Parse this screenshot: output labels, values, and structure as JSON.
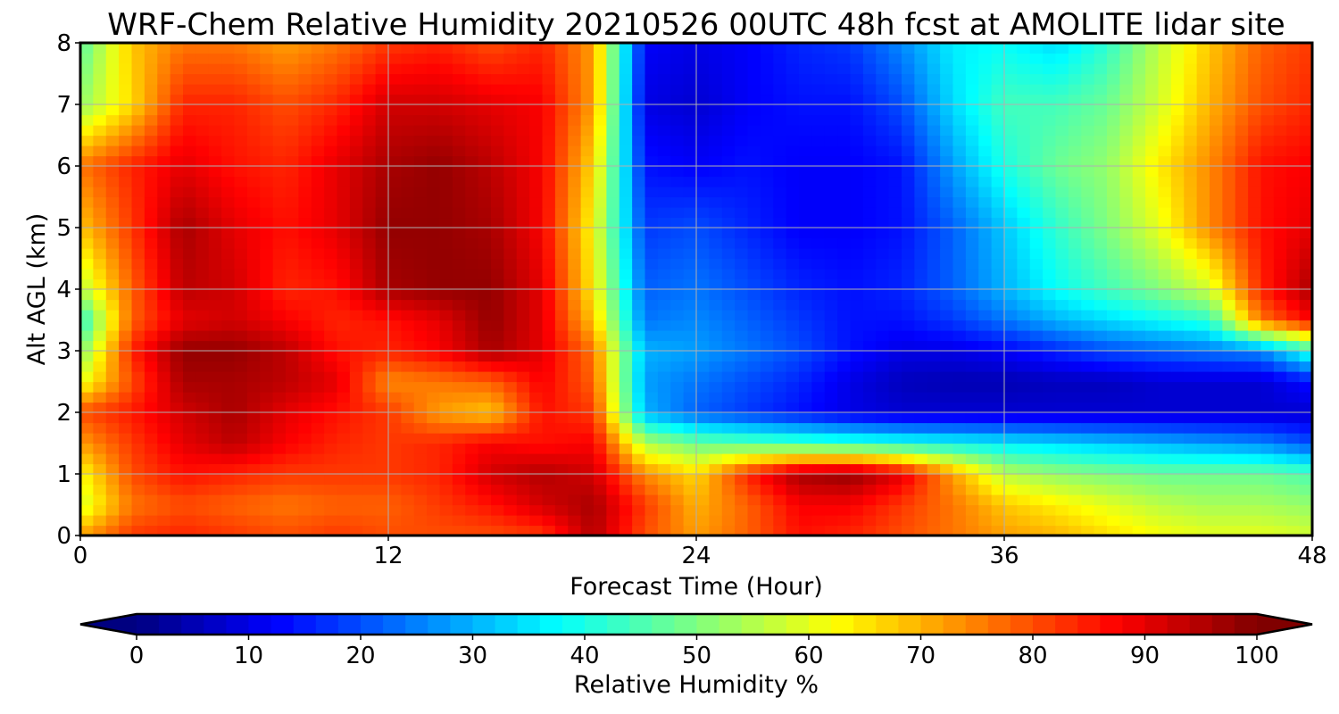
{
  "chart_data": {
    "type": "heatmap",
    "title": "WRF-Chem Relative Humidity 20210526 00UTC 48h fcst at AMOLITE lidar site",
    "xlabel": "Forecast Time (Hour)",
    "ylabel": "Alt AGL (km)",
    "xlim": [
      0,
      48
    ],
    "ylim": [
      0,
      8
    ],
    "x_ticks": [
      "0",
      "12",
      "24",
      "36",
      "48"
    ],
    "y_ticks": [
      "0",
      "1",
      "2",
      "3",
      "4",
      "5",
      "6",
      "7",
      "8"
    ],
    "grid": true,
    "colormap": "jet",
    "colorbar": {
      "label": "Relative Humidity %",
      "range": [
        0,
        100
      ],
      "extend": "both",
      "orientation": "horizontal",
      "ticks": [
        "0",
        "10",
        "20",
        "30",
        "40",
        "50",
        "60",
        "70",
        "80",
        "90",
        "100"
      ]
    },
    "x": [
      0,
      2,
      4,
      6,
      8,
      10,
      12,
      14,
      16,
      18,
      20,
      22,
      24,
      26,
      28,
      30,
      32,
      34,
      36,
      38,
      40,
      42,
      44,
      46,
      48
    ],
    "y": [
      0,
      0.5,
      1,
      1.5,
      2,
      2.5,
      3,
      3.5,
      4,
      5,
      6,
      7,
      8
    ],
    "z": [
      [
        72,
        82,
        84,
        82,
        80,
        82,
        80,
        80,
        80,
        82,
        95,
        80,
        72,
        78,
        86,
        84,
        80,
        76,
        72,
        70,
        66,
        62,
        60,
        60,
        58
      ],
      [
        58,
        76,
        80,
        78,
        76,
        78,
        78,
        82,
        86,
        92,
        96,
        82,
        70,
        78,
        88,
        88,
        82,
        76,
        68,
        64,
        60,
        56,
        54,
        54,
        52
      ],
      [
        62,
        80,
        86,
        84,
        82,
        82,
        82,
        84,
        92,
        95,
        92,
        74,
        66,
        84,
        96,
        98,
        90,
        72,
        56,
        52,
        50,
        48,
        48,
        48,
        45
      ],
      [
        72,
        82,
        90,
        94,
        88,
        84,
        82,
        84,
        88,
        86,
        88,
        55,
        48,
        46,
        44,
        42,
        40,
        38,
        36,
        34,
        32,
        30,
        28,
        26,
        20
      ],
      [
        80,
        85,
        92,
        96,
        90,
        86,
        82,
        72,
        68,
        86,
        82,
        30,
        22,
        18,
        14,
        10,
        8,
        8,
        8,
        8,
        8,
        8,
        8,
        8,
        8
      ],
      [
        60,
        80,
        96,
        96,
        94,
        90,
        74,
        76,
        78,
        88,
        78,
        28,
        24,
        20,
        16,
        10,
        6,
        5,
        5,
        6,
        6,
        8,
        8,
        8,
        14
      ],
      [
        50,
        84,
        98,
        98,
        94,
        86,
        84,
        88,
        96,
        90,
        76,
        30,
        28,
        24,
        20,
        14,
        10,
        10,
        12,
        16,
        20,
        22,
        24,
        26,
        42
      ],
      [
        40,
        78,
        90,
        92,
        88,
        84,
        86,
        90,
        98,
        90,
        68,
        24,
        26,
        22,
        18,
        14,
        14,
        18,
        24,
        30,
        34,
        38,
        42,
        76,
        88
      ],
      [
        55,
        78,
        94,
        92,
        84,
        86,
        96,
        98,
        98,
        90,
        64,
        22,
        24,
        20,
        16,
        14,
        16,
        22,
        30,
        38,
        44,
        50,
        58,
        84,
        96
      ],
      [
        68,
        82,
        96,
        90,
        86,
        90,
        98,
        98,
        96,
        88,
        62,
        18,
        20,
        16,
        12,
        12,
        14,
        22,
        32,
        42,
        50,
        60,
        74,
        86,
        90
      ],
      [
        76,
        84,
        90,
        86,
        84,
        90,
        96,
        98,
        94,
        88,
        66,
        14,
        12,
        14,
        12,
        12,
        14,
        28,
        40,
        48,
        52,
        64,
        74,
        86,
        88
      ],
      [
        52,
        66,
        84,
        84,
        80,
        84,
        92,
        92,
        90,
        88,
        72,
        10,
        8,
        12,
        14,
        14,
        20,
        34,
        44,
        44,
        48,
        58,
        70,
        80,
        84
      ],
      [
        46,
        68,
        76,
        76,
        72,
        76,
        82,
        84,
        80,
        84,
        72,
        12,
        10,
        12,
        16,
        18,
        26,
        36,
        38,
        34,
        42,
        56,
        68,
        78,
        82
      ]
    ]
  }
}
